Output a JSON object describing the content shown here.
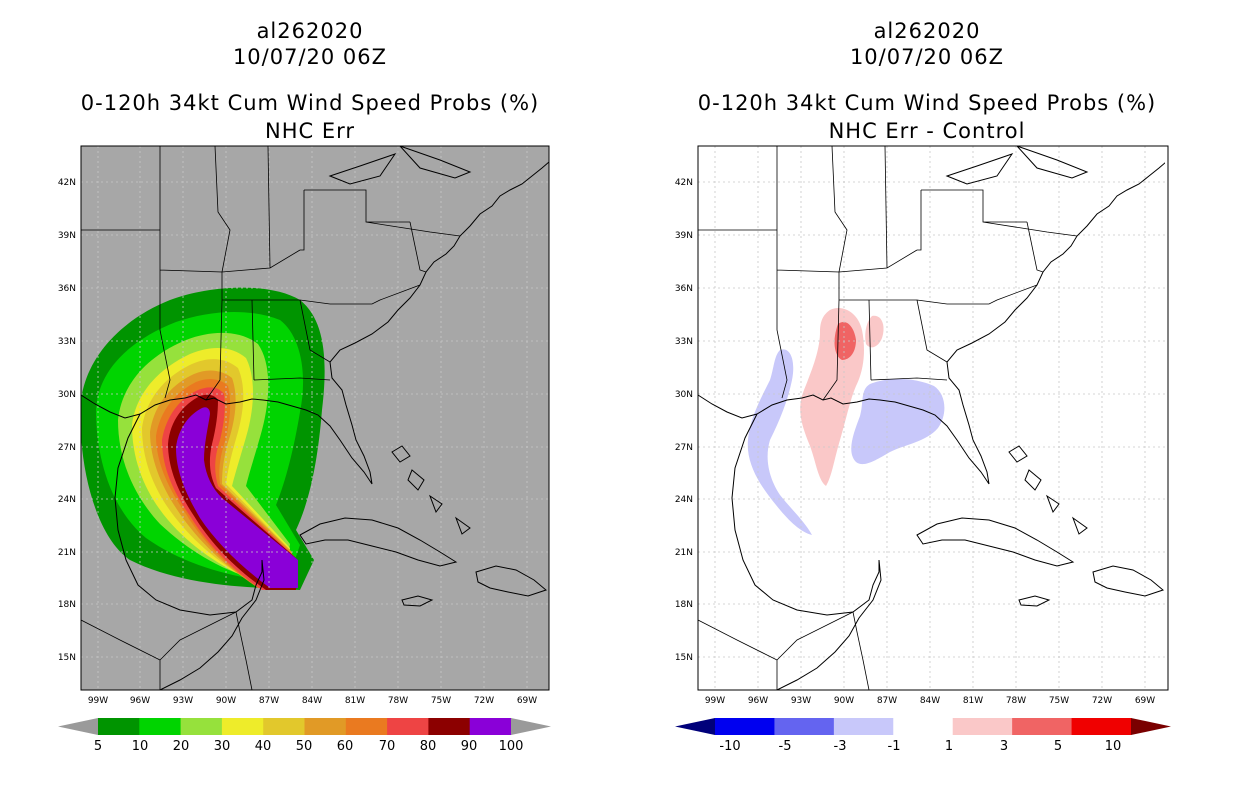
{
  "left": {
    "storm_id": "al262020",
    "date": "10/07/20 06Z",
    "product": "0-120h 34kt Cum Wind Speed Probs (%)",
    "subtitle": "NHC Err",
    "colorbar": {
      "labels": [
        "5",
        "10",
        "20",
        "30",
        "40",
        "50",
        "60",
        "70",
        "80",
        "90",
        "100"
      ],
      "colors": [
        "#9a9a9a",
        "#009400",
        "#00d400",
        "#96e13c",
        "#eeec2a",
        "#e2c82c",
        "#e19a26",
        "#ea7a20",
        "#ee4444",
        "#8c0000",
        "#8a00d8",
        "#9a9a9a"
      ]
    }
  },
  "right": {
    "storm_id": "al262020",
    "date": "10/07/20 06Z",
    "product": "0-120h 34kt Cum Wind Speed Probs (%)",
    "subtitle": "NHC Err - Control",
    "colorbar": {
      "labels": [
        "-10",
        "-5",
        "-3",
        "-1",
        "1",
        "3",
        "5",
        "10"
      ],
      "colors": [
        "#00007a",
        "#0000f0",
        "#6464f0",
        "#c8c8fa",
        "#ffffff",
        "#fac8c8",
        "#f06464",
        "#f00000",
        "#7a0000"
      ]
    }
  },
  "axes": {
    "lat_labels": [
      "42N",
      "39N",
      "36N",
      "33N",
      "30N",
      "27N",
      "24N",
      "21N",
      "18N",
      "15N"
    ],
    "lon_labels": [
      "99W",
      "96W",
      "93W",
      "90W",
      "87W",
      "84W",
      "81W",
      "78W",
      "75W",
      "72W",
      "69W"
    ]
  },
  "map_extent": {
    "lon_min": -101,
    "lon_max": -68,
    "lat_min": 13,
    "lat_max": 44
  },
  "colors": {
    "ocean_left": "#a7a7a7",
    "ocean_right": "#ffffff",
    "coast": "#000000",
    "grid": "#c8c8c8"
  }
}
